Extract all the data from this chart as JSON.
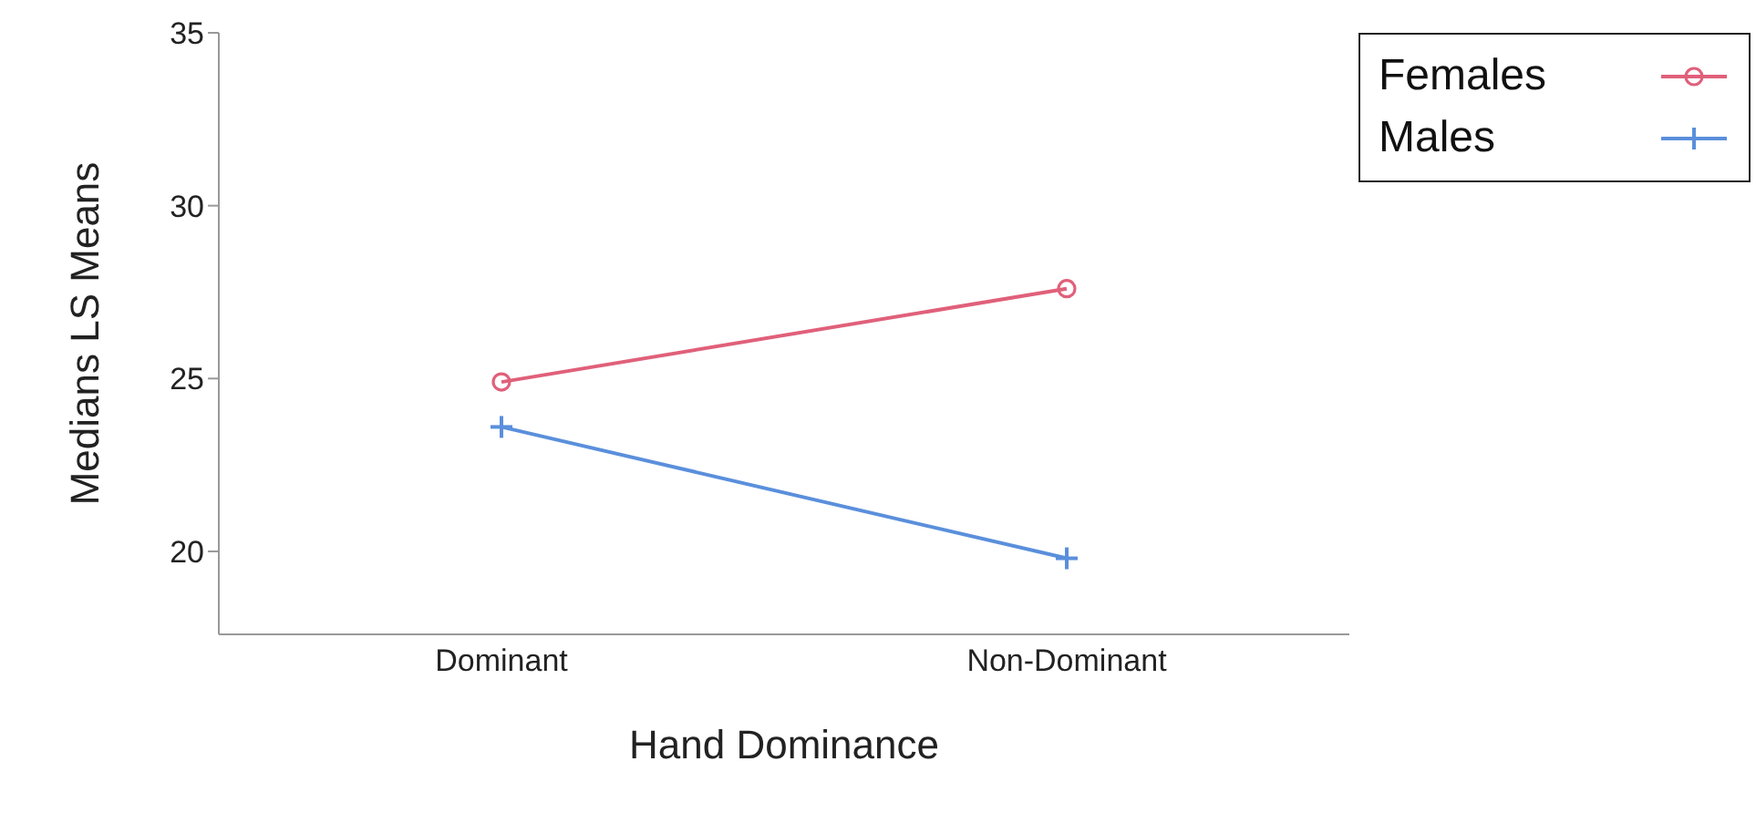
{
  "chart_data": {
    "type": "line",
    "xlabel": "Hand Dominance",
    "ylabel": "Medians LS Means",
    "categories": [
      "Dominant",
      "Non-Dominant"
    ],
    "ylim": [
      17.6,
      35
    ],
    "yticks": [
      20,
      25,
      30,
      35
    ],
    "grid": false,
    "legend": "top right",
    "series": [
      {
        "name": "Females",
        "color": "#e0607a",
        "values": [
          24.9,
          27.6
        ],
        "marker": "circle"
      },
      {
        "name": "Males",
        "color": "#5a8fdc",
        "values": [
          23.6,
          19.8
        ],
        "marker": "cross"
      }
    ]
  }
}
